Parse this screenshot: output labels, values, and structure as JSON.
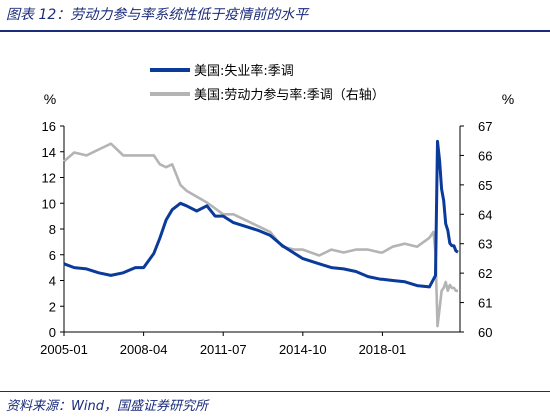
{
  "figure_title": "图表 12：劳动力参与率系统性低于疫情前的水平",
  "source": "资料来源：Wind，国盛证券研究所",
  "chart_data": {
    "type": "line",
    "left_unit": "%",
    "right_unit": "%",
    "x_ticks": [
      "2005-01",
      "2008-04",
      "2011-07",
      "2014-10",
      "2018-01"
    ],
    "x_range": [
      "2005-01",
      "2021-03"
    ],
    "y_left_range": [
      0,
      16
    ],
    "y_left_ticks": [
      0,
      2,
      4,
      6,
      8,
      10,
      12,
      14,
      16
    ],
    "y_right_range": [
      60,
      67
    ],
    "y_right_ticks": [
      60,
      61,
      62,
      63,
      64,
      65,
      66,
      67
    ],
    "legend_position": "top-left",
    "grid": false,
    "series": [
      {
        "name": "美国:失业率:季调",
        "axis": "left",
        "color": "#0a3a9a",
        "points": [
          [
            "2005-01",
            5.3
          ],
          [
            "2005-06",
            5.0
          ],
          [
            "2005-12",
            4.9
          ],
          [
            "2006-06",
            4.6
          ],
          [
            "2006-12",
            4.4
          ],
          [
            "2007-06",
            4.6
          ],
          [
            "2007-12",
            5.0
          ],
          [
            "2008-04",
            5.0
          ],
          [
            "2008-09",
            6.1
          ],
          [
            "2008-12",
            7.3
          ],
          [
            "2009-03",
            8.7
          ],
          [
            "2009-06",
            9.5
          ],
          [
            "2009-10",
            10.0
          ],
          [
            "2010-01",
            9.8
          ],
          [
            "2010-06",
            9.4
          ],
          [
            "2010-11",
            9.8
          ],
          [
            "2011-03",
            9.0
          ],
          [
            "2011-07",
            9.0
          ],
          [
            "2011-12",
            8.5
          ],
          [
            "2012-06",
            8.2
          ],
          [
            "2012-12",
            7.9
          ],
          [
            "2013-06",
            7.5
          ],
          [
            "2013-12",
            6.7
          ],
          [
            "2014-06",
            6.1
          ],
          [
            "2014-10",
            5.7
          ],
          [
            "2015-06",
            5.3
          ],
          [
            "2015-12",
            5.0
          ],
          [
            "2016-06",
            4.9
          ],
          [
            "2016-12",
            4.7
          ],
          [
            "2017-06",
            4.3
          ],
          [
            "2017-12",
            4.1
          ],
          [
            "2018-01",
            4.1
          ],
          [
            "2018-06",
            4.0
          ],
          [
            "2018-12",
            3.9
          ],
          [
            "2019-06",
            3.6
          ],
          [
            "2019-12",
            3.5
          ],
          [
            "2020-03",
            4.4
          ],
          [
            "2020-04",
            14.8
          ],
          [
            "2020-05",
            13.3
          ],
          [
            "2020-06",
            11.1
          ],
          [
            "2020-07",
            10.2
          ],
          [
            "2020-08",
            8.4
          ],
          [
            "2020-09",
            7.9
          ],
          [
            "2020-10",
            6.9
          ],
          [
            "2020-11",
            6.7
          ],
          [
            "2020-12",
            6.7
          ],
          [
            "2021-01",
            6.3
          ],
          [
            "2021-02",
            6.2
          ]
        ]
      },
      {
        "name": "美国:劳动力参与率:季调（右轴）",
        "axis": "right",
        "color": "#b4b4b4",
        "points": [
          [
            "2005-01",
            65.8
          ],
          [
            "2005-06",
            66.1
          ],
          [
            "2005-12",
            66.0
          ],
          [
            "2006-06",
            66.2
          ],
          [
            "2006-12",
            66.4
          ],
          [
            "2007-03",
            66.2
          ],
          [
            "2007-06",
            66.0
          ],
          [
            "2007-12",
            66.0
          ],
          [
            "2008-04",
            66.0
          ],
          [
            "2008-09",
            66.0
          ],
          [
            "2008-12",
            65.7
          ],
          [
            "2009-03",
            65.6
          ],
          [
            "2009-06",
            65.7
          ],
          [
            "2009-10",
            65.0
          ],
          [
            "2010-01",
            64.8
          ],
          [
            "2010-06",
            64.6
          ],
          [
            "2010-11",
            64.4
          ],
          [
            "2011-03",
            64.2
          ],
          [
            "2011-07",
            64.0
          ],
          [
            "2011-12",
            64.0
          ],
          [
            "2012-06",
            63.8
          ],
          [
            "2012-12",
            63.6
          ],
          [
            "2013-06",
            63.4
          ],
          [
            "2013-12",
            62.9
          ],
          [
            "2014-06",
            62.8
          ],
          [
            "2014-10",
            62.8
          ],
          [
            "2015-06",
            62.6
          ],
          [
            "2015-12",
            62.8
          ],
          [
            "2016-06",
            62.7
          ],
          [
            "2016-12",
            62.8
          ],
          [
            "2017-06",
            62.8
          ],
          [
            "2017-12",
            62.7
          ],
          [
            "2018-01",
            62.7
          ],
          [
            "2018-06",
            62.9
          ],
          [
            "2018-12",
            63.0
          ],
          [
            "2019-06",
            62.9
          ],
          [
            "2019-12",
            63.2
          ],
          [
            "2020-02",
            63.4
          ],
          [
            "2020-03",
            62.7
          ],
          [
            "2020-04",
            60.2
          ],
          [
            "2020-05",
            60.8
          ],
          [
            "2020-06",
            61.4
          ],
          [
            "2020-07",
            61.5
          ],
          [
            "2020-08",
            61.7
          ],
          [
            "2020-09",
            61.4
          ],
          [
            "2020-10",
            61.6
          ],
          [
            "2020-11",
            61.5
          ],
          [
            "2020-12",
            61.5
          ],
          [
            "2021-01",
            61.4
          ],
          [
            "2021-02",
            61.4
          ]
        ]
      }
    ]
  }
}
